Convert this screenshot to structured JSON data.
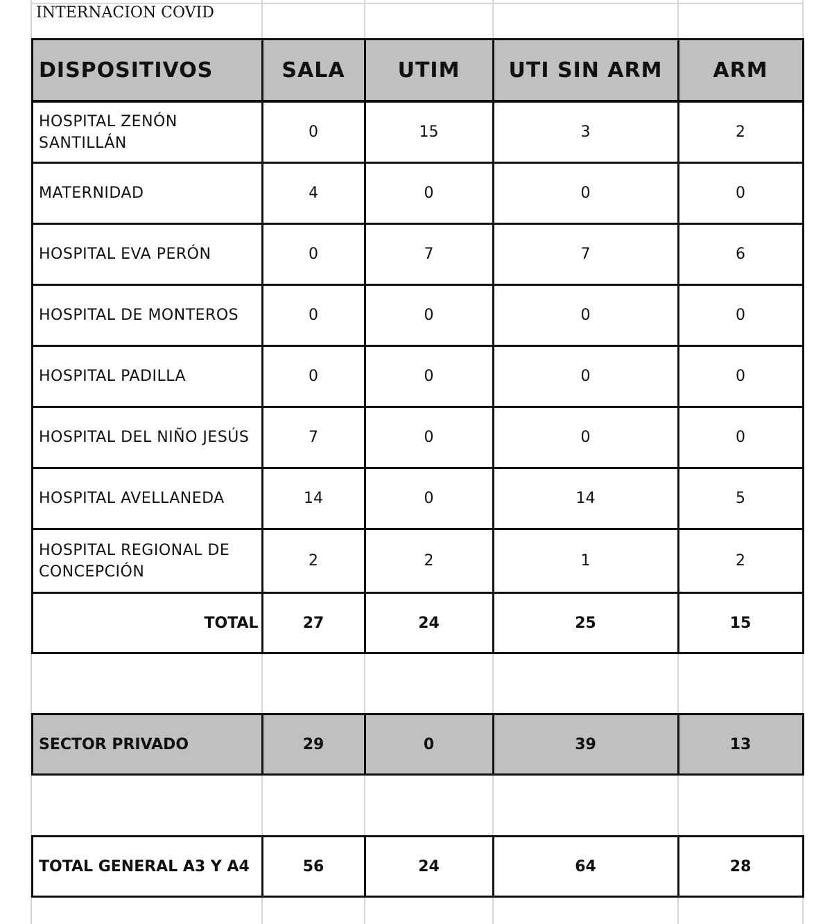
{
  "title": "INTERNACION COVID",
  "columns": [
    "DISPOSITIVOS",
    "SALA",
    "UTIM",
    "UTI SIN ARM",
    "ARM"
  ],
  "rows": [
    {
      "name": "HOSPITAL  ZENÓN SANTILLÁN",
      "values": [
        "0",
        "15",
        "3",
        "2"
      ]
    },
    {
      "name": "MATERNIDAD",
      "values": [
        "4",
        "0",
        "0",
        "0"
      ]
    },
    {
      "name": "HOSPITAL  EVA PERÓN",
      "values": [
        "0",
        "7",
        "7",
        "6"
      ]
    },
    {
      "name": "HOSPITAL  DE MONTEROS",
      "values": [
        "0",
        "0",
        "0",
        "0"
      ]
    },
    {
      "name": "HOSPITAL  PADILLA",
      "values": [
        "0",
        "0",
        "0",
        "0"
      ]
    },
    {
      "name": "HOSPITAL  DEL NIÑO JESÚS",
      "values": [
        "7",
        "0",
        "0",
        "0"
      ]
    },
    {
      "name": "HOSPITAL  AVELLANEDA",
      "values": [
        "14",
        "0",
        "14",
        "5"
      ]
    },
    {
      "name": "HOSPITAL  REGIONAL  DE CONCEPCIÓN",
      "values": [
        "2",
        "2",
        "1",
        "2"
      ]
    }
  ],
  "total": {
    "label": "TOTAL",
    "values": [
      "27",
      "24",
      "25",
      "15"
    ]
  },
  "sector_privado": {
    "label": "SECTOR  PRIVADO",
    "values": [
      "29",
      "0",
      "39",
      "13"
    ]
  },
  "total_general": {
    "label": "TOTAL  GENERAL A3 Y A4",
    "values": [
      "56",
      "24",
      "64",
      "28"
    ]
  },
  "colors": {
    "header_fill": "#c0c0c0",
    "border": "#111111",
    "gridline": "#d6d6d6"
  }
}
